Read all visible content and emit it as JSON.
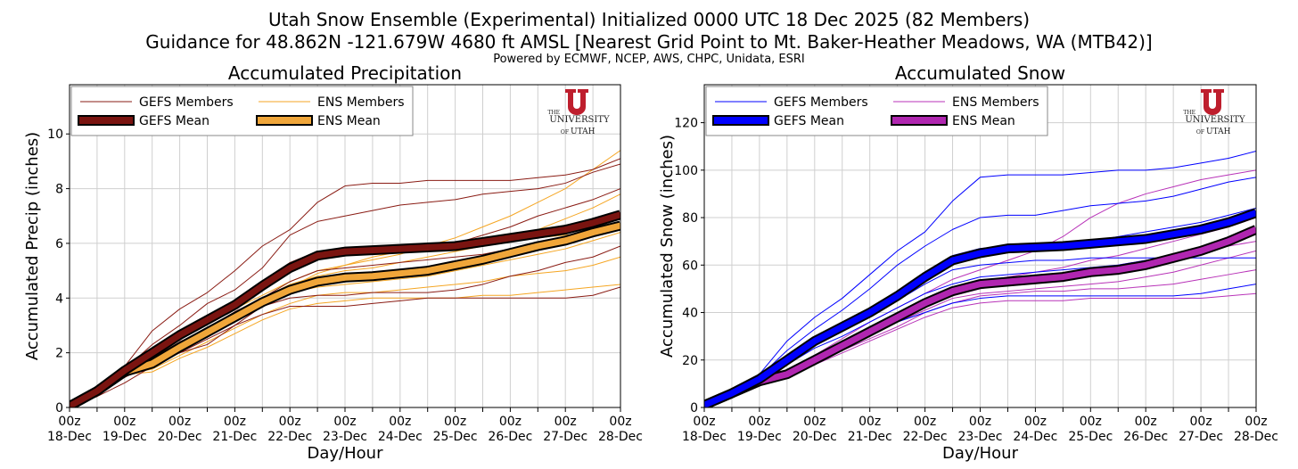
{
  "title": {
    "line1": "Utah Snow Ensemble (Experimental) Initialized 0000 UTC 18 Dec 2025 (82 Members)",
    "line2": "Guidance for 48.862N -121.679W 4680 ft AMSL [Nearest Grid Point to Mt. Baker-Heather Meadows, WA (MTB42)]",
    "line3": "Powered by ECMWF, NCEP, AWS, CHPC, Unidata, ESRI"
  },
  "logo": {
    "the": "THE",
    "university": "UNIVERSITY",
    "of": "OF",
    "utah": "UTAH"
  },
  "chart_data": [
    {
      "type": "line",
      "title": "Accumulated Precipitation",
      "xlabel": "Day/Hour",
      "ylabel": "Accumulated Precip (inches)",
      "ylim": [
        0,
        11.8
      ],
      "yticks": [
        0,
        2,
        4,
        6,
        8,
        10
      ],
      "x_hours": [
        0,
        12,
        24,
        36,
        48,
        60,
        72,
        84,
        96,
        108,
        120,
        132,
        144,
        156,
        168,
        180,
        192,
        204,
        216,
        228,
        240
      ],
      "xtick_labels": [
        [
          "00z",
          "18-Dec"
        ],
        [
          "00z",
          "19-Dec"
        ],
        [
          "00z",
          "20-Dec"
        ],
        [
          "00z",
          "21-Dec"
        ],
        [
          "00z",
          "22-Dec"
        ],
        [
          "00z",
          "23-Dec"
        ],
        [
          "00z",
          "24-Dec"
        ],
        [
          "00z",
          "25-Dec"
        ],
        [
          "00z",
          "26-Dec"
        ],
        [
          "00z",
          "27-Dec"
        ],
        [
          "00z",
          "28-Dec"
        ]
      ],
      "grid": true,
      "legend": "top-left",
      "colors": {
        "gefs_member": "#8a1c14",
        "gefs_mean": "#7a1410",
        "ens_member": "#f5a623",
        "ens_mean": "#f0a63a"
      },
      "legend_labels": {
        "gefs_members": "GEFS Members",
        "ens_members": "ENS Members",
        "gefs_mean": "GEFS Mean",
        "ens_mean": "ENS Mean"
      },
      "gefs_mean": [
        0.05,
        0.6,
        1.35,
        2.0,
        2.65,
        3.2,
        3.75,
        4.45,
        5.1,
        5.55,
        5.7,
        5.75,
        5.8,
        5.85,
        5.9,
        6.05,
        6.2,
        6.35,
        6.5,
        6.75,
        7.05
      ],
      "ens_mean": [
        0.05,
        0.6,
        1.3,
        1.6,
        2.2,
        2.75,
        3.3,
        3.85,
        4.3,
        4.6,
        4.75,
        4.8,
        4.9,
        5.0,
        5.2,
        5.4,
        5.65,
        5.9,
        6.1,
        6.4,
        6.65
      ],
      "gefs_members": [
        [
          0.05,
          0.6,
          1.5,
          2.8,
          3.6,
          4.2,
          5.0,
          5.9,
          6.5,
          7.5,
          8.1,
          8.2,
          8.2,
          8.3,
          8.3,
          8.3,
          8.3,
          8.4,
          8.5,
          8.7,
          9.1
        ],
        [
          0.05,
          0.7,
          1.4,
          2.3,
          3.0,
          3.8,
          4.3,
          5.1,
          6.3,
          6.8,
          7.0,
          7.2,
          7.4,
          7.5,
          7.6,
          7.8,
          7.9,
          8.0,
          8.2,
          8.6,
          8.9
        ],
        [
          0.05,
          0.6,
          1.3,
          2.0,
          2.6,
          3.2,
          3.7,
          4.5,
          5.3,
          5.7,
          5.8,
          5.9,
          5.9,
          6.0,
          6.0,
          6.3,
          6.6,
          7.0,
          7.3,
          7.6,
          8.0
        ],
        [
          0.05,
          0.5,
          1.2,
          1.8,
          2.4,
          2.9,
          3.5,
          4.0,
          4.6,
          5.0,
          5.1,
          5.2,
          5.3,
          5.4,
          5.5,
          5.6,
          5.8,
          6.0,
          6.2,
          6.4,
          6.6
        ],
        [
          0.05,
          0.5,
          1.1,
          1.6,
          2.0,
          2.3,
          3.0,
          3.7,
          4.0,
          4.1,
          4.1,
          4.2,
          4.2,
          4.2,
          4.3,
          4.5,
          4.8,
          5.0,
          5.3,
          5.5,
          5.9
        ],
        [
          0.05,
          0.4,
          0.9,
          1.5,
          2.0,
          2.5,
          3.0,
          3.4,
          3.7,
          3.7,
          3.7,
          3.8,
          3.9,
          4.0,
          4.0,
          4.0,
          4.0,
          4.0,
          4.0,
          4.1,
          4.4
        ]
      ],
      "ens_members": [
        [
          0.05,
          0.7,
          1.4,
          1.8,
          2.5,
          3.1,
          3.6,
          4.1,
          4.6,
          5.0,
          5.2,
          5.4,
          5.6,
          5.9,
          6.2,
          6.6,
          7.0,
          7.5,
          8.0,
          8.7,
          9.4
        ],
        [
          0.05,
          0.6,
          1.3,
          1.7,
          2.3,
          2.9,
          3.4,
          4.0,
          4.5,
          4.8,
          5.0,
          5.1,
          5.3,
          5.5,
          5.7,
          5.9,
          6.2,
          6.5,
          6.9,
          7.3,
          7.8
        ],
        [
          0.05,
          0.6,
          1.3,
          1.5,
          2.1,
          2.7,
          3.2,
          3.7,
          4.2,
          4.4,
          4.5,
          4.6,
          4.7,
          4.8,
          5.0,
          5.2,
          5.4,
          5.6,
          5.8,
          6.1,
          6.4
        ],
        [
          0.05,
          0.5,
          1.2,
          1.4,
          1.9,
          2.4,
          2.9,
          3.4,
          3.8,
          4.1,
          4.2,
          4.2,
          4.3,
          4.4,
          4.5,
          4.6,
          4.8,
          4.9,
          5.0,
          5.2,
          5.5
        ],
        [
          0.05,
          0.5,
          1.2,
          1.3,
          1.8,
          2.2,
          2.7,
          3.2,
          3.6,
          3.8,
          3.9,
          4.0,
          4.0,
          4.0,
          4.0,
          4.1,
          4.1,
          4.2,
          4.3,
          4.4,
          4.5
        ],
        [
          0.05,
          0.6,
          1.3,
          1.6,
          2.2,
          2.8,
          3.3,
          3.9,
          4.4,
          4.9,
          5.2,
          5.5,
          5.7,
          5.8,
          5.9,
          6.0,
          6.1,
          6.2,
          6.3,
          6.4,
          6.5
        ]
      ]
    },
    {
      "type": "line",
      "title": "Accumulated Snow",
      "xlabel": "Day/Hour",
      "ylabel": "Accumulated Snow (inches)",
      "ylim": [
        0,
        136
      ],
      "yticks": [
        0,
        20,
        40,
        60,
        80,
        100,
        120
      ],
      "x_hours": [
        0,
        12,
        24,
        36,
        48,
        60,
        72,
        84,
        96,
        108,
        120,
        132,
        144,
        156,
        168,
        180,
        192,
        204,
        216,
        228,
        240
      ],
      "xtick_labels": [
        [
          "00z",
          "18-Dec"
        ],
        [
          "00z",
          "19-Dec"
        ],
        [
          "00z",
          "20-Dec"
        ],
        [
          "00z",
          "21-Dec"
        ],
        [
          "00z",
          "22-Dec"
        ],
        [
          "00z",
          "23-Dec"
        ],
        [
          "00z",
          "24-Dec"
        ],
        [
          "00z",
          "25-Dec"
        ],
        [
          "00z",
          "26-Dec"
        ],
        [
          "00z",
          "27-Dec"
        ],
        [
          "00z",
          "28-Dec"
        ]
      ],
      "grid": true,
      "legend": "top-left",
      "colors": {
        "gefs_member": "#0000ff",
        "gefs_mean": "#0000ff",
        "ens_member": "#b833b8",
        "ens_mean": "#b026b0"
      },
      "legend_labels": {
        "gefs_members": "GEFS Members",
        "ens_members": "ENS Members",
        "gefs_mean": "GEFS Mean",
        "ens_mean": "ENS Mean"
      },
      "gefs_mean": [
        1,
        6,
        12,
        20,
        28,
        34,
        40,
        47,
        55,
        62,
        65,
        67,
        67.5,
        68,
        69,
        70,
        71,
        73,
        75,
        78,
        82
      ],
      "ens_mean": [
        1,
        6,
        11,
        14,
        20,
        26,
        32,
        38,
        44,
        49,
        52,
        53,
        54,
        55,
        57,
        58,
        60,
        63,
        66,
        70,
        75
      ],
      "gefs_members": [
        [
          1,
          6,
          14,
          28,
          38,
          46,
          56,
          66,
          74,
          87,
          97,
          98,
          98,
          98,
          99,
          100,
          100,
          101,
          103,
          105,
          108
        ],
        [
          1,
          6,
          13,
          24,
          33,
          41,
          50,
          60,
          68,
          75,
          80,
          81,
          81,
          83,
          85,
          86,
          87,
          89,
          92,
          95,
          97
        ],
        [
          1,
          6,
          12,
          21,
          29,
          35,
          42,
          49,
          57,
          64,
          67,
          68,
          68,
          69,
          70,
          72,
          74,
          76,
          78,
          81,
          84
        ],
        [
          1,
          5,
          11,
          18,
          25,
          30,
          36,
          42,
          48,
          52,
          55,
          56,
          57,
          58,
          59,
          60,
          62,
          64,
          67,
          70,
          73
        ],
        [
          1,
          5,
          10,
          16,
          22,
          27,
          32,
          36,
          40,
          44,
          46,
          47,
          47,
          47,
          47,
          47,
          47,
          47,
          48,
          50,
          52
        ],
        [
          1,
          5,
          11,
          19,
          26,
          32,
          38,
          45,
          52,
          58,
          60,
          61,
          62,
          62,
          63,
          63,
          63,
          63,
          63,
          63,
          63
        ]
      ],
      "ens_members": [
        [
          1,
          6,
          12,
          15,
          22,
          29,
          36,
          42,
          48,
          54,
          58,
          62,
          66,
          72,
          80,
          86,
          90,
          93,
          96,
          98,
          100
        ],
        [
          1,
          6,
          11,
          14,
          21,
          27,
          33,
          39,
          45,
          50,
          53,
          55,
          57,
          59,
          62,
          64,
          67,
          70,
          73,
          76,
          80
        ],
        [
          1,
          6,
          11,
          13,
          19,
          25,
          30,
          36,
          41,
          46,
          48,
          49,
          50,
          51,
          52,
          53,
          55,
          57,
          60,
          63,
          66
        ],
        [
          1,
          5,
          10,
          13,
          18,
          23,
          28,
          33,
          38,
          42,
          44,
          45,
          45,
          45,
          46,
          46,
          46,
          46,
          46,
          47,
          48
        ],
        [
          1,
          6,
          11,
          14,
          20,
          26,
          31,
          37,
          43,
          47,
          50,
          52,
          54,
          56,
          58,
          60,
          62,
          64,
          66,
          68,
          70
        ],
        [
          1,
          5,
          10,
          13,
          19,
          24,
          29,
          34,
          40,
          44,
          47,
          48,
          49,
          49,
          50,
          50,
          51,
          52,
          54,
          56,
          58
        ]
      ]
    }
  ]
}
